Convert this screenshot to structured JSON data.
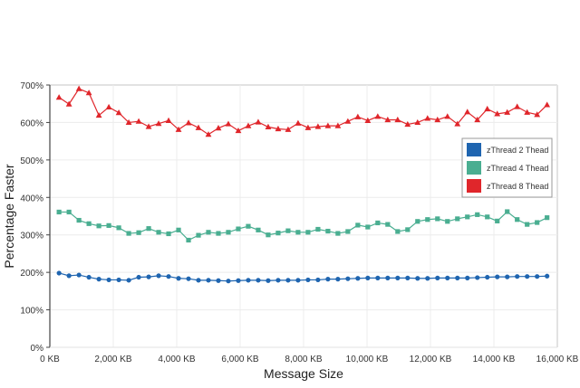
{
  "chart_data": {
    "type": "line",
    "xlabel": "Message Size",
    "ylabel": "Percentage Faster",
    "xlim": [
      0,
      16000
    ],
    "ylim": [
      0,
      700
    ],
    "x_ticks": [
      "0 KB",
      "2,000 KB",
      "4,000 KB",
      "6,000 KB",
      "8,000 KB",
      "10,000 KB",
      "12,000 KB",
      "14,000 KB",
      "16,000 KB"
    ],
    "y_ticks": [
      "0%",
      "100%",
      "200%",
      "300%",
      "400%",
      "500%",
      "600%",
      "700%"
    ],
    "grid": true,
    "legend_position": "right",
    "x_start_kb": 290,
    "x_step_kb": 314,
    "series": [
      {
        "name": "zThread 2 Thead",
        "color": "#1f65b0",
        "marker": "circle",
        "values": [
          198,
          191,
          193,
          187,
          182,
          180,
          180,
          179,
          187,
          188,
          191,
          189,
          184,
          183,
          179,
          179,
          178,
          177,
          178,
          179,
          179,
          178,
          179,
          179,
          179,
          180,
          180,
          182,
          182,
          183,
          184,
          185,
          185,
          185,
          185,
          185,
          184,
          184,
          185,
          185,
          185,
          185,
          186,
          187,
          188,
          188,
          189,
          189,
          189,
          190
        ]
      },
      {
        "name": "zThread 4 Thead",
        "color": "#4aae91",
        "marker": "square",
        "values": [
          361,
          361,
          339,
          330,
          324,
          325,
          319,
          304,
          306,
          317,
          307,
          303,
          313,
          286,
          299,
          307,
          304,
          307,
          316,
          323,
          313,
          300,
          305,
          311,
          307,
          307,
          315,
          310,
          304,
          309,
          326,
          321,
          332,
          328,
          309,
          314,
          336,
          341,
          343,
          336,
          343,
          348,
          354,
          348,
          337,
          362,
          341,
          328,
          333,
          346
        ]
      },
      {
        "name": "zThread 8 Thead",
        "color": "#e0262b",
        "marker": "triangle",
        "values": [
          667,
          649,
          690,
          679,
          619,
          641,
          626,
          600,
          603,
          589,
          597,
          605,
          581,
          599,
          586,
          568,
          585,
          596,
          578,
          591,
          601,
          588,
          583,
          581,
          598,
          586,
          589,
          591,
          591,
          603,
          615,
          605,
          616,
          607,
          607,
          595,
          600,
          611,
          607,
          616,
          596,
          628,
          607,
          636,
          623,
          627,
          642,
          627,
          621,
          647
        ]
      }
    ]
  }
}
